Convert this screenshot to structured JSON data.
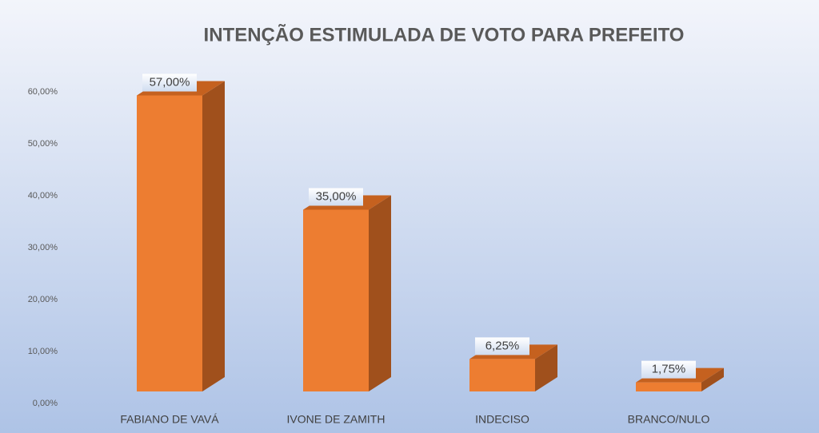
{
  "chart_data": {
    "type": "bar",
    "title": "INTENÇÃO ESTIMULADA DE VOTO PARA PREFEITO",
    "categories": [
      "FABIANO DE VAVÁ",
      "IVONE DE ZAMITH",
      "INDECISO",
      "BRANCO/NULO"
    ],
    "values": [
      57,
      35,
      6.25,
      1.75
    ],
    "value_labels": [
      "57,00%",
      "35,00%",
      "6,25%",
      "1,75%"
    ],
    "color": "#ed7d31",
    "ylim": [
      0,
      60
    ],
    "yticks": [
      {
        "value": 0,
        "label": "0,00%"
      },
      {
        "value": 10,
        "label": "10,00%"
      },
      {
        "value": 20,
        "label": "20,00%"
      },
      {
        "value": 30,
        "label": "30,00%"
      },
      {
        "value": 40,
        "label": "40,00%"
      },
      {
        "value": 50,
        "label": "50,00%"
      },
      {
        "value": 60,
        "label": "60,00%"
      }
    ]
  }
}
